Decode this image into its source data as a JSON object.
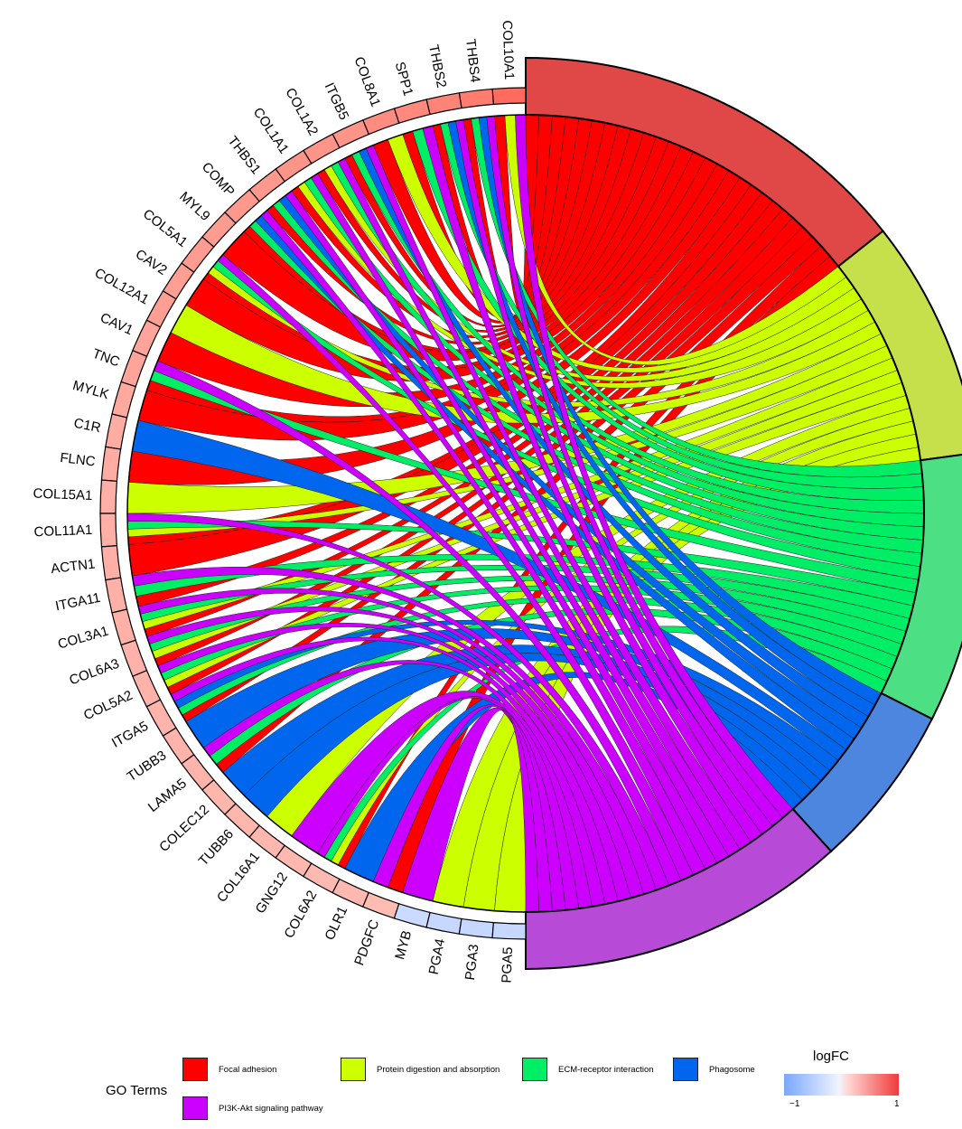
{
  "chart_data": {
    "type": "chord",
    "genes": [
      {
        "name": "COL10A1",
        "logFC": 0.8
      },
      {
        "name": "THBS4",
        "logFC": 0.7
      },
      {
        "name": "THBS2",
        "logFC": 0.65
      },
      {
        "name": "SPP1",
        "logFC": 0.62
      },
      {
        "name": "COL8A1",
        "logFC": 0.6
      },
      {
        "name": "ITGB5",
        "logFC": 0.55
      },
      {
        "name": "COL1A2",
        "logFC": 0.55
      },
      {
        "name": "COL1A1",
        "logFC": 0.55
      },
      {
        "name": "THBS1",
        "logFC": 0.52
      },
      {
        "name": "COMP",
        "logFC": 0.52
      },
      {
        "name": "MYL9",
        "logFC": 0.5
      },
      {
        "name": "COL5A1",
        "logFC": 0.5
      },
      {
        "name": "CAV2",
        "logFC": 0.48
      },
      {
        "name": "COL12A1",
        "logFC": 0.48
      },
      {
        "name": "CAV1",
        "logFC": 0.45
      },
      {
        "name": "TNC",
        "logFC": 0.45
      },
      {
        "name": "MYLK",
        "logFC": 0.42
      },
      {
        "name": "C1R",
        "logFC": 0.4
      },
      {
        "name": "FLNC",
        "logFC": 0.4
      },
      {
        "name": "COL15A1",
        "logFC": 0.38
      },
      {
        "name": "COL11A1",
        "logFC": 0.38
      },
      {
        "name": "ACTN1",
        "logFC": 0.38
      },
      {
        "name": "ITGA11",
        "logFC": 0.37
      },
      {
        "name": "COL3A1",
        "logFC": 0.37
      },
      {
        "name": "COL6A3",
        "logFC": 0.36
      },
      {
        "name": "COL5A2",
        "logFC": 0.36
      },
      {
        "name": "ITGA5",
        "logFC": 0.35
      },
      {
        "name": "TUBB3",
        "logFC": 0.35
      },
      {
        "name": "LAMA5",
        "logFC": 0.35
      },
      {
        "name": "COLEC12",
        "logFC": 0.34
      },
      {
        "name": "TUBB6",
        "logFC": 0.34
      },
      {
        "name": "COL16A1",
        "logFC": 0.33
      },
      {
        "name": "GNG12",
        "logFC": 0.33
      },
      {
        "name": "COL6A2",
        "logFC": 0.32
      },
      {
        "name": "OLR1",
        "logFC": 0.32
      },
      {
        "name": "PDGFC",
        "logFC": 0.3
      },
      {
        "name": "MYB",
        "logFC": -0.3
      },
      {
        "name": "PGA4",
        "logFC": -0.35
      },
      {
        "name": "PGA3",
        "logFC": -0.35
      },
      {
        "name": "PGA5",
        "logFC": -0.35
      }
    ],
    "terms": [
      {
        "name": "Focal adhesion",
        "color": "#ff0000",
        "sector_color": "#e04848",
        "genes": [
          "COL10A1",
          "THBS4",
          "THBS2",
          "SPP1",
          "COL8A1",
          "ITGB5",
          "COL1A2",
          "COL1A1",
          "THBS1",
          "COMP",
          "MYL9",
          "COL5A1",
          "CAV2",
          "CAV1",
          "TNC",
          "MYLK",
          "FLNC",
          "COL11A1",
          "ACTN1",
          "ITGA11",
          "COL3A1",
          "COL6A3",
          "COL5A2",
          "ITGA5",
          "LAMA5",
          "COL6A2",
          "PDGFC"
        ]
      },
      {
        "name": "Protein digestion and absorption",
        "color": "#ccff00",
        "sector_color": "#c5e04a",
        "genes": [
          "COL10A1",
          "COL8A1",
          "COL1A2",
          "COL1A1",
          "COL5A1",
          "COL12A1",
          "COL15A1",
          "COL11A1",
          "COL3A1",
          "COL6A3",
          "COL5A2",
          "COL16A1",
          "COL6A2",
          "PGA4",
          "PGA3",
          "PGA5"
        ]
      },
      {
        "name": "ECM-receptor interaction",
        "color": "#00ee66",
        "sector_color": "#4ddf84",
        "genes": [
          "THBS4",
          "THBS2",
          "SPP1",
          "ITGB5",
          "COL1A2",
          "COL1A1",
          "THBS1",
          "COMP",
          "COL5A1",
          "TNC",
          "COL11A1",
          "ITGA11",
          "COL3A1",
          "COL6A3",
          "COL5A2",
          "ITGA5",
          "LAMA5",
          "COL6A2"
        ]
      },
      {
        "name": "Phagosome",
        "color": "#0066ee",
        "sector_color": "#4d86df",
        "genes": [
          "THBS4",
          "THBS2",
          "ITGB5",
          "THBS1",
          "COMP",
          "C1R",
          "ITGA5",
          "TUBB3",
          "COLEC12",
          "TUBB6",
          "OLR1"
        ]
      },
      {
        "name": "PI3K-Akt signaling pathway",
        "color": "#cc00ff",
        "sector_color": "#b84ad8",
        "genes": [
          "COL10A1",
          "THBS4",
          "THBS2",
          "SPP1",
          "ITGB5",
          "COL1A2",
          "COL1A1",
          "THBS1",
          "COMP",
          "COL5A1",
          "TNC",
          "COL11A1",
          "ITGA11",
          "COL3A1",
          "COL6A3",
          "COL5A2",
          "ITGA5",
          "LAMA5",
          "GNG12",
          "COL6A2",
          "PDGFC",
          "MYB"
        ]
      }
    ],
    "legend": {
      "title": "GO Terms",
      "colorbar_title": "logFC",
      "colorbar_range": [
        -1,
        1
      ],
      "colorbar_tick_labels": [
        "−1",
        "1"
      ]
    }
  }
}
